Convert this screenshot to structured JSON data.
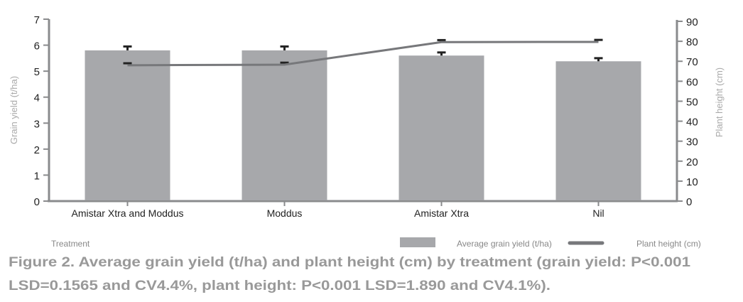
{
  "chart_data": {
    "type": "bar+line",
    "categories": [
      "Amistar Xtra and Moddus",
      "Moddus",
      "Amistar Xtra",
      "Nil"
    ],
    "series": [
      {
        "name": "Average grain yield (t/ha)",
        "type": "bar",
        "axis": "left",
        "values": [
          5.8,
          5.8,
          5.6,
          5.38
        ],
        "error": [
          0.15,
          0.15,
          0.12,
          0.12
        ],
        "color": "#a7a8ab"
      },
      {
        "name": "Plant height (cm)",
        "type": "line",
        "axis": "right",
        "values": [
          68,
          68.3,
          79.6,
          79.7
        ],
        "error": [
          1,
          1,
          1,
          1
        ],
        "color": "#77787b"
      }
    ],
    "xlabel": "Treatment",
    "ylabel": "Grain yield (t/ha)",
    "y2label": "Plant height (cm)",
    "ylim": [
      0,
      7
    ],
    "y2lim": [
      0,
      90
    ],
    "yticks": [
      "0",
      "1",
      "2",
      "3",
      "4",
      "5",
      "6",
      "7"
    ],
    "y2ticks": [
      "0",
      "10",
      "20",
      "30",
      "40",
      "50",
      "60",
      "70",
      "80",
      "90"
    ],
    "grid": false,
    "legend_position": "bottom-right",
    "caption_lines": [
      "Figure 2. Average grain yield (t/ha) and plant height (cm) by treatment (grain yield: P<0.001",
      "LSD=0.1565 and CV4.4%, plant height: P<0.001 LSD=1.890 and CV4.1%)."
    ]
  }
}
